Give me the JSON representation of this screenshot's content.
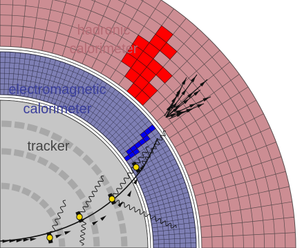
{
  "labels": {
    "hadronic_line1": "hadronic",
    "hadronic_line2": "calorimeter",
    "em_line1": "electromagnetic",
    "em_line2": "calorimeter",
    "tracker": "tracker"
  },
  "colors": {
    "hadronic_fill": "#cc8d93",
    "hadronic_text": "#b56b74",
    "em_fill": "#7e7fb4",
    "em_text": "#3b3f9c",
    "tracker_fill": "#c6c6c6",
    "tracker_dark": "#a8a8a8",
    "hit_red": "#ff0000",
    "hit_blue": "#0000ee",
    "hit_yellow": "#f2d700"
  }
}
